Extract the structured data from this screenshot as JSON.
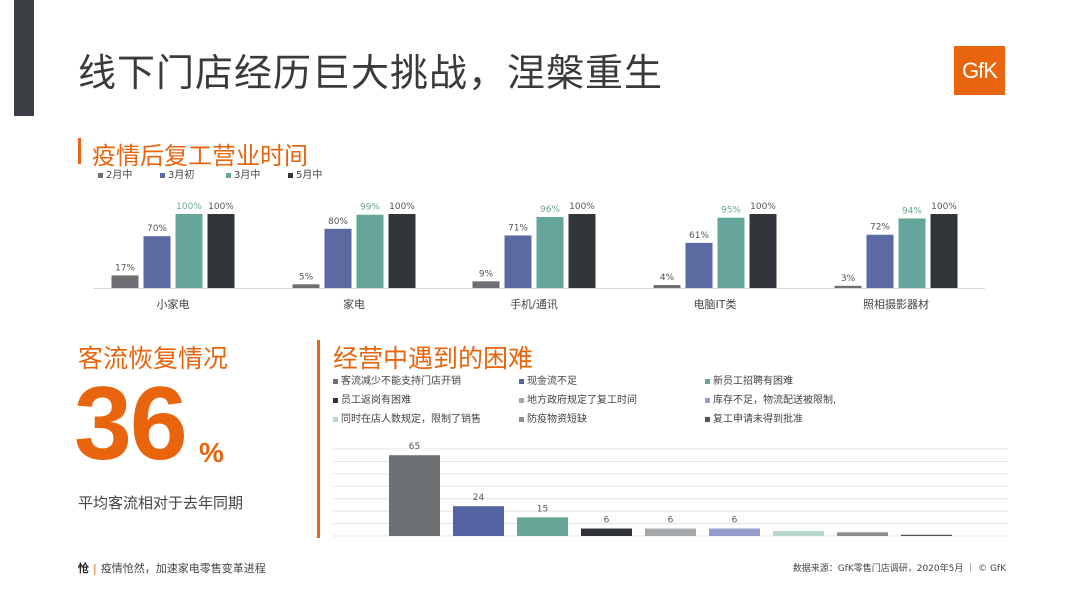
{
  "header": {
    "title": "线下门店经历巨大挑战，涅槃重生",
    "logo_text": "GfK"
  },
  "colors": {
    "accent": "#e8650e",
    "series": [
      "#6d6f72",
      "#5b6aa3",
      "#66a59a",
      "#32363a"
    ],
    "difficulty": [
      "#6d7073",
      "#5464a3",
      "#67a597",
      "#2f3236",
      "#a5a8ab",
      "#959cc9",
      "#b8d7cf",
      "#8c8f92",
      "#505357"
    ]
  },
  "section_reopen": {
    "title": "疫情后复工营业时间"
  },
  "section_traffic": {
    "title": "客流恢复情况",
    "value": "36",
    "unit": "%",
    "label": "平均客流相对于去年同期"
  },
  "section_difficulty": {
    "title": "经营中遇到的困难"
  },
  "chart_data": [
    {
      "type": "bar",
      "categories": [
        "小家电",
        "家电",
        "手机/通讯",
        "电脑IT类",
        "照相摄影器材"
      ],
      "series": [
        {
          "name": "2月中",
          "values": [
            17,
            5,
            9,
            4,
            3
          ],
          "labels": [
            "17%",
            "5%",
            "9%",
            "4%",
            "3%"
          ]
        },
        {
          "name": "3月初",
          "values": [
            70,
            80,
            71,
            61,
            72
          ],
          "labels": [
            "70%",
            "80%",
            "71%",
            "61%",
            "72%"
          ]
        },
        {
          "name": "3月中",
          "values": [
            100,
            99,
            96,
            95,
            94
          ],
          "labels": [
            "100%",
            "99%",
            "96%",
            "95%",
            "94%"
          ]
        },
        {
          "name": "5月中",
          "values": [
            100,
            100,
            100,
            100,
            100
          ],
          "labels": [
            "100%",
            "100%",
            "100%",
            "100%",
            "100%"
          ]
        }
      ],
      "ylim": [
        0,
        100
      ],
      "legend": "top-left",
      "grid": false
    },
    {
      "type": "bar",
      "categories": [
        "客流减少不能支持门店开销",
        "现金流不足",
        "新员工招聘有困难",
        "员工返岗有困难",
        "地方政府规定了复工时间",
        "库存不足，物流配送被限制,",
        "同时在店人数规定，限制了销售",
        "防疫物资短缺",
        "复工申请未得到批准"
      ],
      "values": [
        65,
        24,
        15,
        6,
        6,
        6,
        4,
        3,
        1
      ],
      "labels": [
        "65",
        "24",
        "15",
        "6",
        "6",
        "6",
        "",
        "",
        ""
      ],
      "ylim": [
        0,
        70
      ],
      "legend": "top",
      "grid": true
    }
  ],
  "footer": {
    "brand": "怆",
    "slogan": "疫情怆然，加速家电零售变革进程",
    "source": "数据来源：GfK零售门店调研，2020年5月 ｜ © GfK"
  }
}
